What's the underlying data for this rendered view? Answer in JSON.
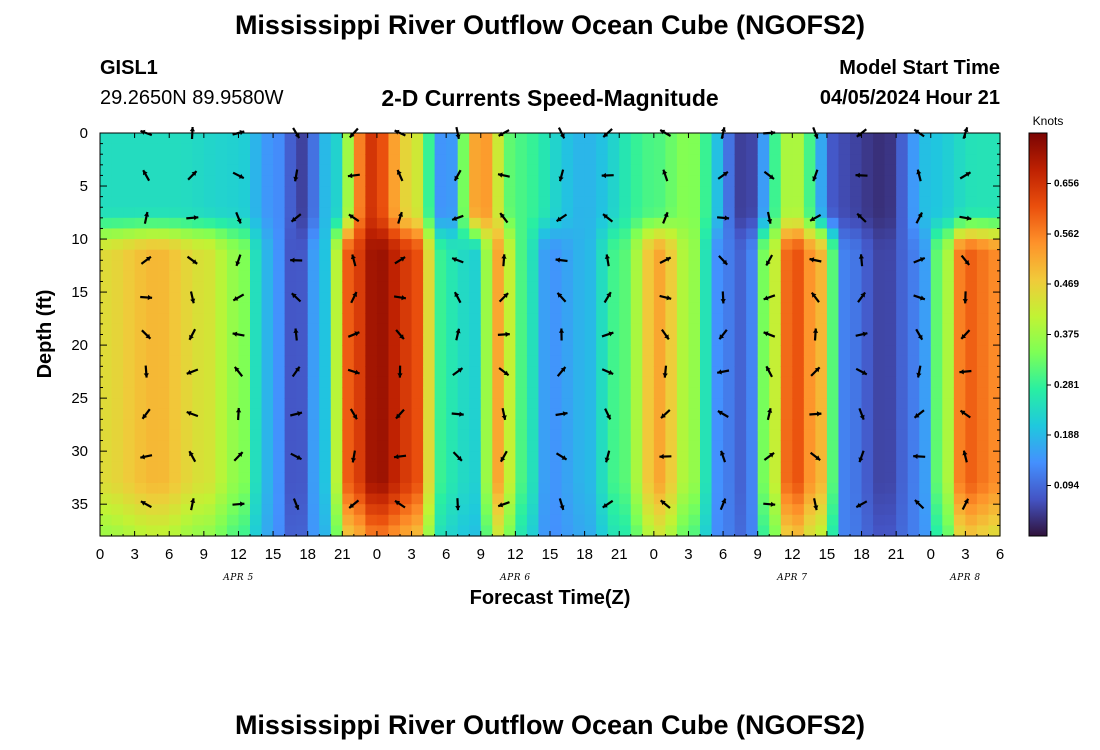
{
  "title": "Mississippi River Outflow Ocean Cube (NGOFS2)",
  "footer_title": "Mississippi River Outflow Ocean Cube (NGOFS2)",
  "station": {
    "id": "GISL1",
    "coords": "29.2650N  89.9580W"
  },
  "subtitle": "2-D Currents Speed-Magnitude",
  "model": {
    "label": "Model Start Time",
    "value": "04/05/2024 Hour 21"
  },
  "chart_data": {
    "type": "heatmap",
    "title": "2-D Currents Speed-Magnitude",
    "xlabel": "Forecast Time(Z)",
    "ylabel": "Depth (ft)",
    "x_range_hours_from_apr5_00z": [
      0,
      78
    ],
    "x_tick_labels": [
      "0",
      "3",
      "6",
      "9",
      "12",
      "15",
      "18",
      "21",
      "0",
      "3",
      "6",
      "9",
      "12",
      "15",
      "18",
      "21",
      "0",
      "3",
      "6",
      "9",
      "12",
      "15",
      "18",
      "21",
      "0",
      "3",
      "6"
    ],
    "date_labels": [
      {
        "label": "APR 5",
        "hour": 12
      },
      {
        "label": "APR 6",
        "hour": 36
      },
      {
        "label": "APR 7",
        "hour": 60
      },
      {
        "label": "APR 8",
        "hour": 75
      }
    ],
    "ylim": [
      0,
      38
    ],
    "y_ticks": [
      0,
      5,
      10,
      15,
      20,
      25,
      30,
      35
    ],
    "y_inverted": true,
    "colorbar": {
      "label": "Knots",
      "ticks": [
        "0.656",
        "0.562",
        "0.469",
        "0.375",
        "0.281",
        "0.188",
        "0.094"
      ],
      "min": 0.0,
      "max": 0.75,
      "colors": [
        "#30123b",
        "#4454c4",
        "#4490fe",
        "#1fc8de",
        "#29efa2",
        "#7dff56",
        "#c1f334",
        "#f1ca3a",
        "#fe922a",
        "#ea4f0d",
        "#be2102",
        "#7a0403"
      ]
    },
    "arrow_times_hours": [
      4,
      8,
      12,
      17,
      22,
      26,
      31,
      35,
      40,
      44,
      49,
      54,
      58,
      62,
      66,
      71,
      75
    ],
    "arrow_depths_ft": [
      0,
      4,
      8,
      12,
      15.5,
      19,
      22.5,
      26.5,
      30.5,
      35
    ],
    "speed_by_time_surface": [
      {
        "hour": 0,
        "speed": 0.24
      },
      {
        "hour": 6,
        "speed": 0.24
      },
      {
        "hour": 12,
        "speed": 0.22
      },
      {
        "hour": 15,
        "speed": 0.14
      },
      {
        "hour": 17.5,
        "speed": 0.05
      },
      {
        "hour": 20,
        "speed": 0.2
      },
      {
        "hour": 23.5,
        "speed": 0.65
      },
      {
        "hour": 27,
        "speed": 0.45
      },
      {
        "hour": 30,
        "speed": 0.12
      },
      {
        "hour": 33,
        "speed": 0.55
      },
      {
        "hour": 36,
        "speed": 0.3
      },
      {
        "hour": 42,
        "speed": 0.18
      },
      {
        "hour": 48,
        "speed": 0.3
      },
      {
        "hour": 51,
        "speed": 0.35
      },
      {
        "hour": 56,
        "speed": 0.04
      },
      {
        "hour": 60,
        "speed": 0.4
      },
      {
        "hour": 64,
        "speed": 0.06
      },
      {
        "hour": 68,
        "speed": 0.03
      },
      {
        "hour": 72,
        "speed": 0.2
      },
      {
        "hour": 76,
        "speed": 0.25
      },
      {
        "hour": 78,
        "speed": 0.25
      }
    ],
    "speed_by_time_deep": [
      {
        "hour": 0,
        "speed": 0.45
      },
      {
        "hour": 5,
        "speed": 0.5
      },
      {
        "hour": 9,
        "speed": 0.44
      },
      {
        "hour": 12,
        "speed": 0.36
      },
      {
        "hour": 14.5,
        "speed": 0.18
      },
      {
        "hour": 17,
        "speed": 0.06
      },
      {
        "hour": 19.5,
        "speed": 0.2
      },
      {
        "hour": 21.5,
        "speed": 0.6
      },
      {
        "hour": 24,
        "speed": 0.72
      },
      {
        "hour": 27,
        "speed": 0.64
      },
      {
        "hour": 30,
        "speed": 0.26
      },
      {
        "hour": 32.5,
        "speed": 0.22
      },
      {
        "hour": 34.5,
        "speed": 0.52
      },
      {
        "hour": 36.5,
        "speed": 0.3
      },
      {
        "hour": 39,
        "speed": 0.14
      },
      {
        "hour": 42,
        "speed": 0.18
      },
      {
        "hour": 45,
        "speed": 0.3
      },
      {
        "hour": 48.5,
        "speed": 0.52
      },
      {
        "hour": 51,
        "speed": 0.38
      },
      {
        "hour": 54,
        "speed": 0.12
      },
      {
        "hour": 56,
        "speed": 0.08
      },
      {
        "hour": 58,
        "speed": 0.38
      },
      {
        "hour": 60,
        "speed": 0.62
      },
      {
        "hour": 62.5,
        "speed": 0.5
      },
      {
        "hour": 64.5,
        "speed": 0.12
      },
      {
        "hour": 68,
        "speed": 0.05
      },
      {
        "hour": 71,
        "speed": 0.12
      },
      {
        "hour": 73,
        "speed": 0.35
      },
      {
        "hour": 75,
        "speed": 0.6
      },
      {
        "hour": 78,
        "speed": 0.55
      }
    ]
  }
}
